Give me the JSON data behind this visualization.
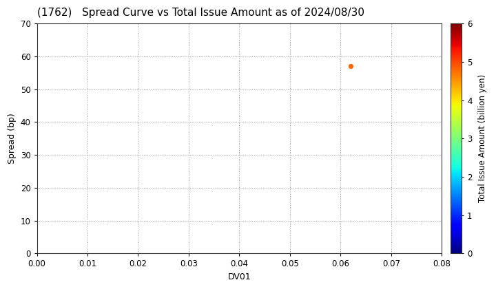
{
  "title": "(1762)   Spread Curve vs Total Issue Amount as of 2024/08/30",
  "xlabel": "DV01",
  "ylabel": "Spread (bp)",
  "colorbar_label": "Total Issue Amount (billion yen)",
  "xlim": [
    0.0,
    0.08
  ],
  "ylim": [
    0,
    70
  ],
  "xticks": [
    0.0,
    0.01,
    0.02,
    0.03,
    0.04,
    0.05,
    0.06,
    0.07,
    0.08
  ],
  "yticks": [
    0,
    10,
    20,
    30,
    40,
    50,
    60,
    70
  ],
  "colorbar_min": 0,
  "colorbar_max": 6,
  "colorbar_ticks": [
    0,
    1,
    2,
    3,
    4,
    5,
    6
  ],
  "scatter_x": [
    0.062
  ],
  "scatter_y": [
    57
  ],
  "scatter_color_value": [
    4.8
  ],
  "scatter_size": 18,
  "background_color": "#ffffff",
  "grid_color": "#999999",
  "grid_style": "dotted",
  "title_fontsize": 11,
  "axis_fontsize": 9,
  "tick_fontsize": 8.5,
  "colorbar_fontsize": 8.5
}
